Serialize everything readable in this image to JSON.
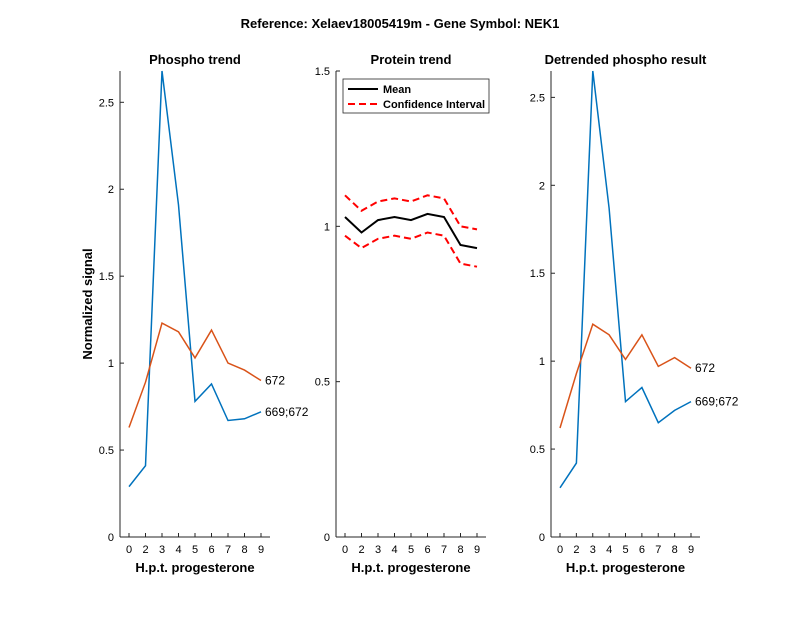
{
  "figure": {
    "suptitle": "Reference:  Xelaev18005419m - Gene Symbol:  NEK1"
  },
  "chart_data": [
    {
      "type": "line",
      "title": "Phospho trend",
      "xlabel": "H.p.t. progesterone",
      "ylabel": "Normalized signal",
      "x": [
        0,
        2,
        3,
        4,
        5,
        6,
        7,
        8,
        9
      ],
      "xticks": [
        "0",
        "2",
        "3",
        "4",
        "5",
        "6",
        "7",
        "8",
        "9"
      ],
      "ylim": [
        0,
        2.68
      ],
      "yticks": [
        0,
        0.5,
        1,
        1.5,
        2,
        2.5
      ],
      "yticklabels": [
        "0",
        "0.5",
        "1",
        "1.5",
        "2",
        "2.5"
      ],
      "grid": false,
      "series": [
        {
          "name": "669;672",
          "color": "#0072BD",
          "style": "solid",
          "values": [
            0.29,
            0.41,
            2.68,
            1.91,
            0.78,
            0.88,
            0.67,
            0.68,
            0.72
          ]
        },
        {
          "name": "672",
          "color": "#D95319",
          "style": "solid",
          "values": [
            0.63,
            0.89,
            1.23,
            1.18,
            1.03,
            1.19,
            1.0,
            0.96,
            0.9
          ]
        }
      ]
    },
    {
      "type": "line",
      "title": "Protein trend",
      "xlabel": "H.p.t. progesterone",
      "ylabel": "",
      "x": [
        0,
        2,
        3,
        4,
        5,
        6,
        7,
        8,
        9
      ],
      "xticks": [
        "0",
        "2",
        "3",
        "4",
        "5",
        "6",
        "7",
        "8",
        "9"
      ],
      "ylim": [
        0,
        1.5
      ],
      "yticks": [
        0,
        0.5,
        1,
        1.5
      ],
      "yticklabels": [
        "0",
        "0.5",
        "1",
        "1.5"
      ],
      "grid": false,
      "legend": {
        "placement": "top-left",
        "entries": [
          "Mean",
          "Confidence Interval"
        ]
      },
      "series": [
        {
          "name": "Mean",
          "color": "#000000",
          "style": "solid",
          "values": [
            1.03,
            0.98,
            1.02,
            1.03,
            1.02,
            1.04,
            1.03,
            0.94,
            0.93
          ]
        },
        {
          "name": "Confidence Interval",
          "color": "#FF0000",
          "style": "dashed",
          "values": [
            1.1,
            1.05,
            1.08,
            1.09,
            1.08,
            1.1,
            1.09,
            1.0,
            0.99
          ]
        },
        {
          "name": "Confidence Interval",
          "color": "#FF0000",
          "style": "dashed",
          "legend": false,
          "values": [
            0.97,
            0.93,
            0.96,
            0.97,
            0.96,
            0.98,
            0.97,
            0.88,
            0.87
          ]
        }
      ]
    },
    {
      "type": "line",
      "title": "Detrended phospho result",
      "xlabel": "H.p.t. progesterone",
      "ylabel": "",
      "x": [
        0,
        2,
        3,
        4,
        5,
        6,
        7,
        8,
        9
      ],
      "xticks": [
        "0",
        "2",
        "3",
        "4",
        "5",
        "6",
        "7",
        "8",
        "9"
      ],
      "ylim": [
        0,
        2.65
      ],
      "yticks": [
        0,
        0.5,
        1,
        1.5,
        2,
        2.5
      ],
      "yticklabels": [
        "0",
        "0.5",
        "1",
        "1.5",
        "2",
        "2.5"
      ],
      "grid": false,
      "series": [
        {
          "name": "669;672",
          "color": "#0072BD",
          "style": "solid",
          "values": [
            0.28,
            0.42,
            2.65,
            1.87,
            0.77,
            0.85,
            0.65,
            0.72,
            0.77
          ]
        },
        {
          "name": "672",
          "color": "#D95319",
          "style": "solid",
          "values": [
            0.62,
            0.93,
            1.21,
            1.15,
            1.01,
            1.15,
            0.97,
            1.02,
            0.96
          ]
        }
      ]
    }
  ]
}
